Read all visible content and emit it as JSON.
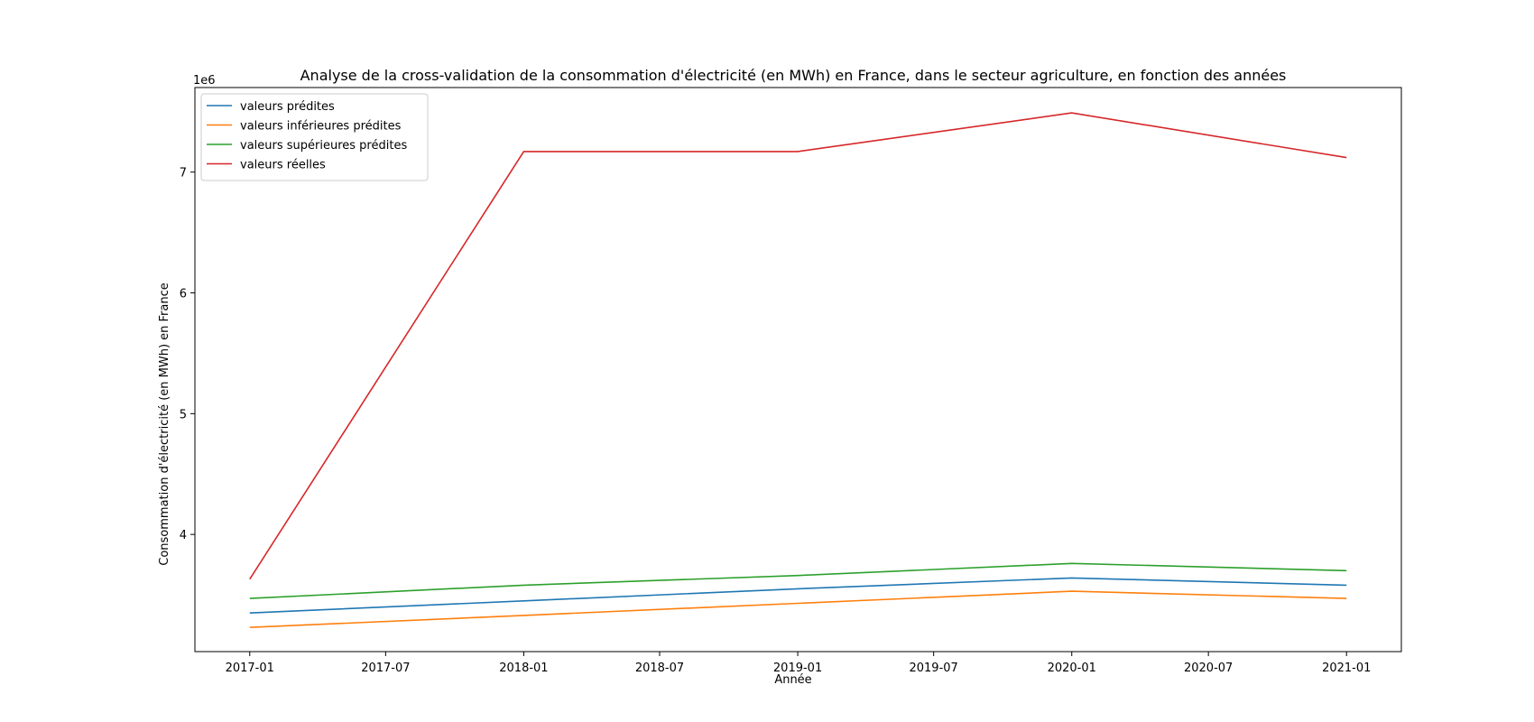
{
  "chart_data": {
    "type": "line",
    "title": "Analyse de la cross-validation de la consommation d'électricité (en MWh) en France, dans le secteur agriculture, en fonction des années",
    "xlabel": "Année",
    "ylabel": "Consommation d'électricité (en MWh) en France",
    "y_scale_label": "1e6",
    "x": [
      "2017-01",
      "2018-01",
      "2019-01",
      "2020-01",
      "2021-01"
    ],
    "xticks": [
      "2017-01",
      "2017-07",
      "2018-01",
      "2018-07",
      "2019-01",
      "2019-07",
      "2020-01",
      "2020-07",
      "2021-01"
    ],
    "yticks": [
      4,
      5,
      6,
      7
    ],
    "ylim": [
      3.03,
      7.7
    ],
    "grid": false,
    "legend_position": "upper-left",
    "series": [
      {
        "name": "valeurs prédites",
        "color": "#1f77b4",
        "values": [
          3.35,
          3.45,
          3.55,
          3.64,
          3.58
        ]
      },
      {
        "name": "valeurs inférieures prédites",
        "color": "#ff7f0e",
        "values": [
          3.23,
          3.33,
          3.43,
          3.53,
          3.47
        ]
      },
      {
        "name": "valeurs supérieures prédites",
        "color": "#2ca02c",
        "values": [
          3.47,
          3.58,
          3.66,
          3.76,
          3.7
        ]
      },
      {
        "name": "valeurs réelles",
        "color": "#d62728",
        "values": [
          3.63,
          7.17,
          7.17,
          7.49,
          7.12
        ]
      }
    ]
  }
}
